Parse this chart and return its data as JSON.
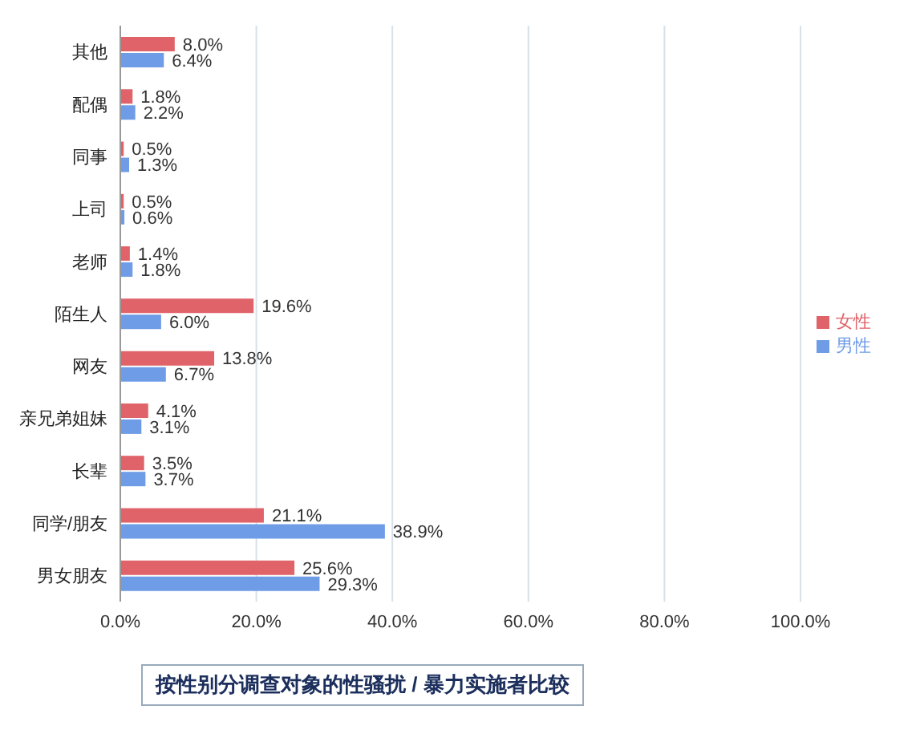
{
  "chart_data": {
    "type": "bar",
    "orientation": "horizontal",
    "title": "按性别分调查对象的性骚扰 / 暴力实施者比较",
    "categories": [
      "其他",
      "配偶",
      "同事",
      "上司",
      "老师",
      "陌生人",
      "网友",
      "亲兄弟姐妹",
      "长辈",
      "同学/朋友",
      "男女朋友"
    ],
    "series": [
      {
        "name": "女性",
        "color": "#e0636a",
        "values": [
          8.0,
          1.8,
          0.5,
          0.5,
          1.4,
          19.6,
          13.8,
          4.1,
          3.5,
          21.1,
          25.6
        ],
        "value_labels": [
          "8.0%",
          "1.8%",
          "0.5%",
          "0.5%",
          "1.4%",
          "19.6%",
          "13.8%",
          "4.1%",
          "3.5%",
          "21.1%",
          "25.6%"
        ]
      },
      {
        "name": "男性",
        "color": "#6f9ce6",
        "values": [
          6.4,
          2.2,
          1.3,
          0.6,
          1.8,
          6.0,
          6.7,
          3.1,
          3.7,
          38.9,
          29.3
        ],
        "value_labels": [
          "6.4%",
          "2.2%",
          "1.3%",
          "0.6%",
          "1.8%",
          "6.0%",
          "6.7%",
          "3.1%",
          "3.7%",
          "38.9%",
          "29.3%"
        ]
      }
    ],
    "xlim": [
      0,
      100
    ],
    "xticks": [
      {
        "value": 0,
        "label": "0.0%"
      },
      {
        "value": 20,
        "label": "20.0%"
      },
      {
        "value": 40,
        "label": "40.0%"
      },
      {
        "value": 60,
        "label": "60.0%"
      },
      {
        "value": 80,
        "label": "80.0%"
      },
      {
        "value": 100,
        "label": "100.0%"
      }
    ],
    "grid": "x",
    "legend": "right"
  }
}
